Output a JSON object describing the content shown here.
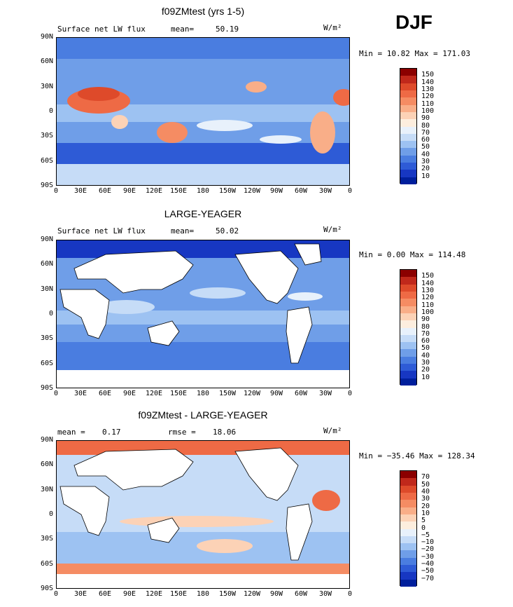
{
  "season": "DJF",
  "panels": [
    {
      "title": "f09ZMtest (yrs 1-5)",
      "left_label": "Surface net LW flux",
      "stat_label": "mean=",
      "stat_value": "50.19",
      "units": "W/m²",
      "minmax": "Min =  10.82 Max = 171.03",
      "colorbar_labels": [
        "150",
        "140",
        "130",
        "120",
        "110",
        "100",
        "90",
        "80",
        "70",
        "60",
        "50",
        "40",
        "30",
        "20",
        "10"
      ],
      "colorbar_colors": [
        "#8b0000",
        "#c0281b",
        "#de4a2a",
        "#ee6a45",
        "#f58c63",
        "#f9ae88",
        "#fcd2b6",
        "#fdeede",
        "#e8f1fb",
        "#c6dcf7",
        "#9dc2f2",
        "#6f9ee8",
        "#4a7de0",
        "#2e5bd6",
        "#1737c2",
        "#001f9c"
      ],
      "land_color": "#ffffff"
    },
    {
      "title": "LARGE-YEAGER",
      "left_label": "Surface net LW flux",
      "stat_label": "mean=",
      "stat_value": "50.02",
      "units": "W/m²",
      "minmax": "Min =   0.00 Max = 114.48",
      "colorbar_labels": [
        "150",
        "140",
        "130",
        "120",
        "110",
        "100",
        "90",
        "80",
        "70",
        "60",
        "50",
        "40",
        "30",
        "20",
        "10"
      ],
      "colorbar_colors": [
        "#8b0000",
        "#c0281b",
        "#de4a2a",
        "#ee6a45",
        "#f58c63",
        "#f9ae88",
        "#fcd2b6",
        "#fdeede",
        "#e8f1fb",
        "#c6dcf7",
        "#9dc2f2",
        "#6f9ee8",
        "#4a7de0",
        "#2e5bd6",
        "#1737c2",
        "#001f9c"
      ],
      "land_color": "#ffffff"
    },
    {
      "title": "f09ZMtest - LARGE-YEAGER",
      "left_label": "mean =",
      "left_value": "0.17",
      "stat_label": "rmse =",
      "stat_value": "18.06",
      "units": "W/m²",
      "minmax": "Min = −35.46 Max = 128.34",
      "colorbar_labels": [
        "70",
        "50",
        "40",
        "30",
        "20",
        "10",
        "5",
        "0",
        "−5",
        "−10",
        "−20",
        "−30",
        "−40",
        "−50",
        "−70"
      ],
      "colorbar_colors": [
        "#8b0000",
        "#c0281b",
        "#de4a2a",
        "#ee6a45",
        "#f58c63",
        "#f9ae88",
        "#fcd2b6",
        "#fdeede",
        "#e8f1fb",
        "#c6dcf7",
        "#9dc2f2",
        "#6f9ee8",
        "#4a7de0",
        "#2e5bd6",
        "#1737c2",
        "#001f9c"
      ],
      "land_color": "#ffffff"
    }
  ],
  "axes": {
    "lat_ticks": [
      "90N",
      "60N",
      "30N",
      "0",
      "30S",
      "60S",
      "90S"
    ],
    "lon_ticks": [
      "0",
      "30E",
      "60E",
      "90E",
      "120E",
      "150E",
      "180",
      "150W",
      "120W",
      "90W",
      "60W",
      "30W",
      "0"
    ]
  }
}
